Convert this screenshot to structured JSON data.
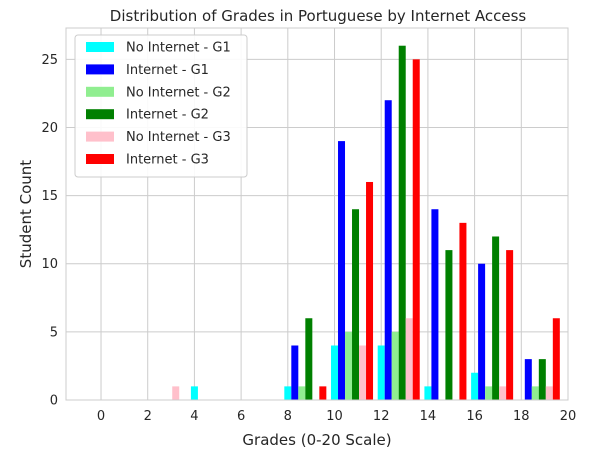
{
  "chart_data": {
    "type": "bar",
    "title": "Distribution of Grades in Portuguese by Internet Access",
    "xlabel": "Grades (0-20 Scale)",
    "ylabel": "Student Count",
    "xlim": [
      -1.5,
      20
    ],
    "ylim": [
      0,
      27.3
    ],
    "xticks": [
      0,
      2,
      4,
      6,
      8,
      10,
      12,
      14,
      16,
      18,
      20
    ],
    "yticks": [
      0,
      5,
      10,
      15,
      20,
      25
    ],
    "grid": true,
    "legend_position": "top-left",
    "series": [
      {
        "name": "No Internet - G1",
        "color": "#00ffff",
        "x": [
          0,
          2,
          4,
          6,
          8,
          10,
          12,
          14,
          16,
          18
        ],
        "values": [
          0,
          0,
          1,
          0,
          1,
          4,
          4,
          1,
          2,
          0
        ]
      },
      {
        "name": "Internet - G1",
        "color": "#0000ff",
        "x": [
          0,
          2,
          4,
          6,
          8,
          10,
          12,
          14,
          16,
          18
        ],
        "values": [
          0,
          0,
          0,
          0,
          4,
          19,
          22,
          14,
          10,
          3
        ]
      },
      {
        "name": "No Internet - G2",
        "color": "#90ee90",
        "x": [
          0,
          2,
          4,
          6,
          8,
          10,
          12,
          14,
          16,
          18
        ],
        "values": [
          0,
          0,
          0,
          0,
          1,
          5,
          5,
          0,
          1,
          1
        ]
      },
      {
        "name": "Internet - G2",
        "color": "#008000",
        "x": [
          0,
          2,
          4,
          6,
          8,
          10,
          12,
          14,
          16,
          18
        ],
        "values": [
          0,
          0,
          0,
          0,
          6,
          14,
          26,
          11,
          12,
          3
        ]
      },
      {
        "name": "No Internet - G3",
        "color": "#ffc0cb",
        "x": [
          0,
          2,
          4,
          6,
          8,
          10,
          12,
          14,
          16,
          18
        ],
        "values": [
          0,
          1,
          0,
          0,
          0,
          4,
          6,
          0,
          1,
          1
        ]
      },
      {
        "name": "Internet - G3",
        "color": "#ff0000",
        "x": [
          0,
          2,
          4,
          6,
          8,
          10,
          12,
          14,
          16,
          18
        ],
        "values": [
          0,
          0,
          0,
          0,
          1,
          16,
          25,
          13,
          11,
          6
        ]
      }
    ]
  }
}
